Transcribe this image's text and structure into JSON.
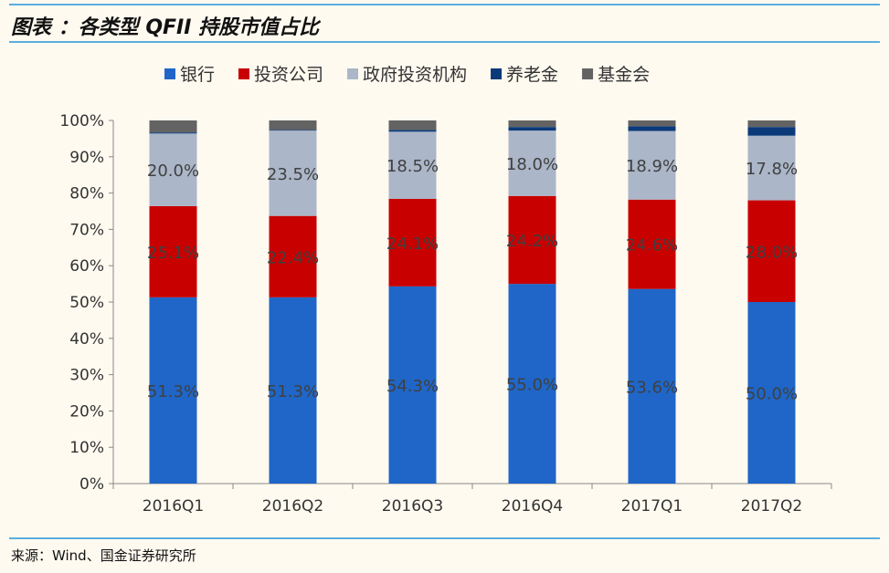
{
  "header": {
    "title": "图表 ：各类型 QFII 持股市值占比"
  },
  "footer": {
    "source": "来源：Wind、国金证券研究所"
  },
  "chart_data": {
    "type": "bar",
    "stacked": true,
    "title": "",
    "xlabel": "",
    "ylabel": "",
    "ylim": [
      0,
      100
    ],
    "yticks": [
      "0%",
      "10%",
      "20%",
      "30%",
      "40%",
      "50%",
      "60%",
      "70%",
      "80%",
      "90%",
      "100%"
    ],
    "legend_position": "top",
    "categories": [
      "2016Q1",
      "2016Q2",
      "2016Q3",
      "2016Q4",
      "2017Q1",
      "2017Q2"
    ],
    "series": [
      {
        "name": "银行",
        "color": "#1f66c8",
        "values": [
          51.3,
          51.3,
          54.3,
          55.0,
          53.6,
          50.0
        ],
        "labels": [
          "51.3%",
          "51.3%",
          "54.3%",
          "55.0%",
          "53.6%",
          "50.0%"
        ]
      },
      {
        "name": "投资公司",
        "color": "#c80000",
        "values": [
          25.1,
          22.4,
          24.1,
          24.2,
          24.6,
          28.0
        ],
        "labels": [
          "25.1%",
          "22.4%",
          "24.1%",
          "24.2%",
          "24.6%",
          "28.0%"
        ]
      },
      {
        "name": "政府投资机构",
        "color": "#abb6c8",
        "values": [
          20.0,
          23.5,
          18.5,
          18.0,
          18.9,
          17.8
        ],
        "labels": [
          "20.0%",
          "23.5%",
          "18.5%",
          "18.0%",
          "18.9%",
          "17.8%"
        ]
      },
      {
        "name": "养老金",
        "color": "#0a3a7a",
        "values": [
          0.3,
          0.2,
          0.5,
          1.0,
          1.3,
          2.4
        ]
      },
      {
        "name": "基金会",
        "color": "#636363",
        "values": [
          3.3,
          2.6,
          2.6,
          1.8,
          1.6,
          1.8
        ]
      }
    ]
  }
}
